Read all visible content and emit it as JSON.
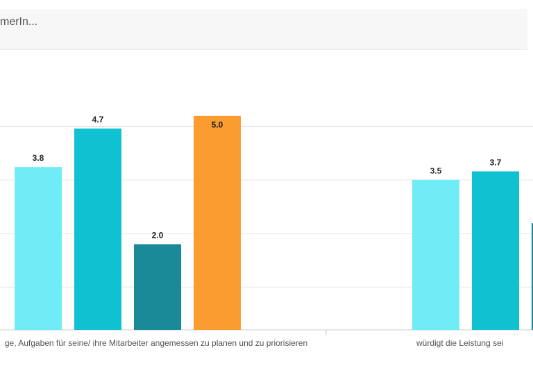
{
  "header": {
    "title": "merIn..."
  },
  "colors": {
    "series1": "#6fecf5",
    "series2": "#10c2d1",
    "series3": "#1a8a99",
    "series4": "#fb9c31",
    "grid": "#e6e6e6",
    "axis": "#cccccc",
    "label": "#222222"
  },
  "chart_data": {
    "type": "bar",
    "categories": [
      "ge, Aufgaben für seine/ ihre Mitarbeiter angemessen zu planen und zu priorisieren",
      "würdigt die Leistung sei"
    ],
    "series": [
      {
        "values": [
          3.8,
          3.5
        ]
      },
      {
        "values": [
          4.7,
          3.7
        ]
      },
      {
        "values": [
          2.0,
          null
        ]
      },
      {
        "values": [
          5.0,
          null
        ]
      }
    ],
    "data_labels": [
      [
        "3.8",
        "3.5"
      ],
      [
        "4.7",
        "3.7"
      ],
      [
        "2.0",
        null
      ],
      [
        "5.0",
        null
      ]
    ],
    "ylim": [
      0,
      5
    ],
    "grid": true
  }
}
